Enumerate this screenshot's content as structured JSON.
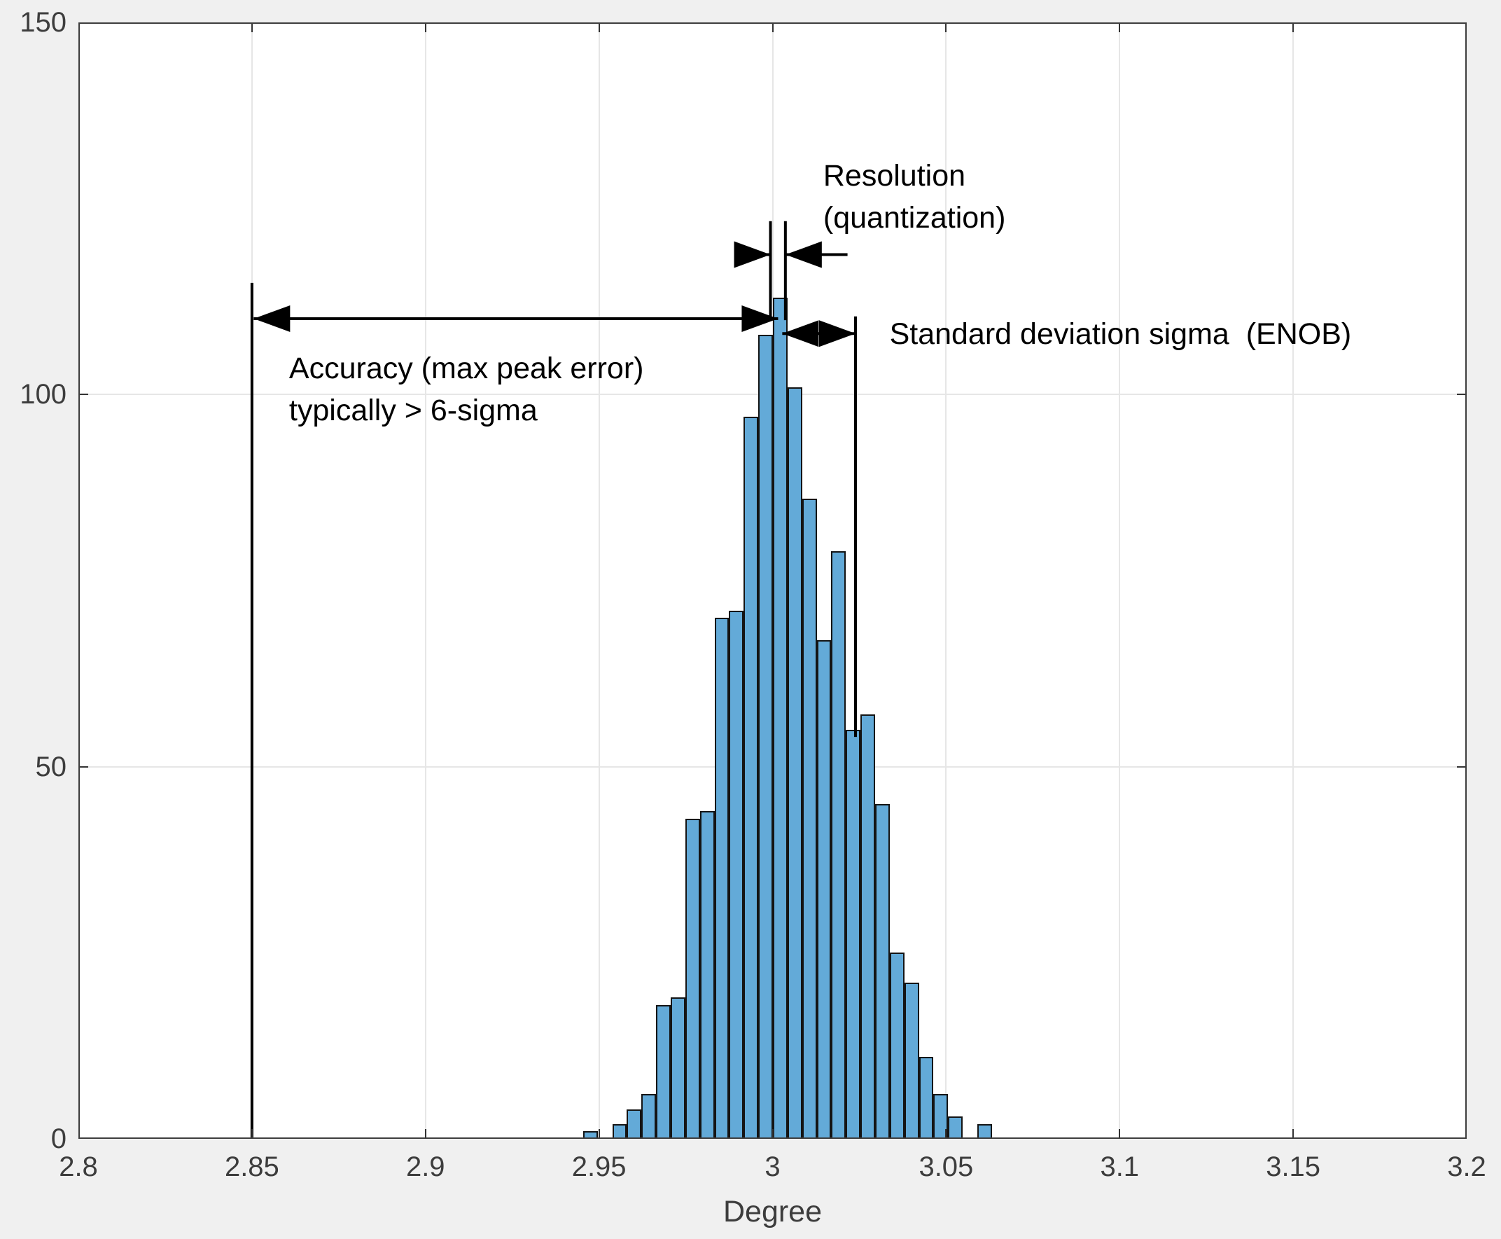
{
  "figure": {
    "background": "#f0f0f0",
    "plot_background": "#ffffff",
    "box_color": "#3d3d3d",
    "grid_color": "#e6e6e6",
    "tick_color": "#333333",
    "tick_label_color": "#3d3d3d"
  },
  "chart_data": {
    "type": "bar",
    "subtype": "histogram",
    "title": "",
    "xlabel": "Degree",
    "ylabel": "",
    "xlim": [
      2.8,
      3.2
    ],
    "ylim": [
      0,
      150
    ],
    "grid": true,
    "legend": "none",
    "x_ticks": [
      {
        "value": 2.8,
        "label": "2.8"
      },
      {
        "value": 2.85,
        "label": "2.85"
      },
      {
        "value": 2.9,
        "label": "2.9"
      },
      {
        "value": 2.95,
        "label": "2.95"
      },
      {
        "value": 3,
        "label": "3"
      },
      {
        "value": 3.05,
        "label": "3.05"
      },
      {
        "value": 3.1,
        "label": "3.1"
      },
      {
        "value": 3.15,
        "label": "3.15"
      },
      {
        "value": 3.2,
        "label": "3.2"
      }
    ],
    "y_ticks": [
      {
        "value": 0,
        "label": "0"
      },
      {
        "value": 50,
        "label": "50"
      },
      {
        "value": 100,
        "label": "100"
      },
      {
        "value": 150,
        "label": "150"
      }
    ],
    "bar_fill": "#63aad8",
    "bar_edge": "#141414",
    "bins": {
      "start": 2.9454,
      "width": 0.004207
    },
    "counts": [
      1,
      0,
      2,
      4,
      6,
      18,
      19,
      43,
      44,
      70,
      71,
      97,
      108,
      113,
      101,
      86,
      67,
      79,
      55,
      57,
      45,
      25,
      21,
      11,
      6,
      3,
      0,
      2
    ],
    "annotations": {
      "color": "#000000",
      "marker_lines": [
        {
          "name": "accuracy-limit-line",
          "x1": 2.85,
          "y1": 0,
          "x2": 2.85,
          "y2": 115
        },
        {
          "name": "resolution-left-line",
          "x1": 2.9994,
          "y1": 110,
          "x2": 2.9994,
          "y2": 123.3
        },
        {
          "name": "resolution-right-line",
          "x1": 3.0037,
          "y1": 110,
          "x2": 3.0037,
          "y2": 123.3
        },
        {
          "name": "sigma-line",
          "x1": 3.0239,
          "y1": 54,
          "x2": 3.0239,
          "y2": 110.5
        }
      ],
      "arrows": [
        {
          "name": "accuracy-arrow",
          "x1": 2.8505,
          "y1": 110.2,
          "x2": 3.0016,
          "y2": 110.2,
          "head_start": true,
          "head_end": true
        },
        {
          "name": "resolution-arrow-left",
          "x1": 2.9906,
          "y1": 118.8,
          "x2": 2.9994,
          "y2": 118.8,
          "head_start": false,
          "head_end": true
        },
        {
          "name": "resolution-arrow-right",
          "x1": 3.0216,
          "y1": 118.8,
          "x2": 3.0037,
          "y2": 118.8,
          "head_start": false,
          "head_end": true
        },
        {
          "name": "sigma-arrow",
          "x1": 3.0028,
          "y1": 108.2,
          "x2": 3.0239,
          "y2": 108.2,
          "head_start": true,
          "head_end": true
        }
      ],
      "labels": [
        {
          "name": "resolution-label",
          "lines": [
            "Resolution",
            "(quantization)"
          ],
          "x": 3.0146,
          "y": 132.2,
          "valign": "top"
        },
        {
          "name": "sigma-label",
          "lines": [
            "Standard deviation sigma  (ENOB)"
          ],
          "x": 3.0337,
          "y": 108.1,
          "valign": "center"
        },
        {
          "name": "accuracy-label",
          "lines": [
            "Accuracy (max peak error)",
            "typically > 6-sigma"
          ],
          "x": 2.8607,
          "y": 106.3,
          "valign": "top"
        }
      ]
    }
  }
}
